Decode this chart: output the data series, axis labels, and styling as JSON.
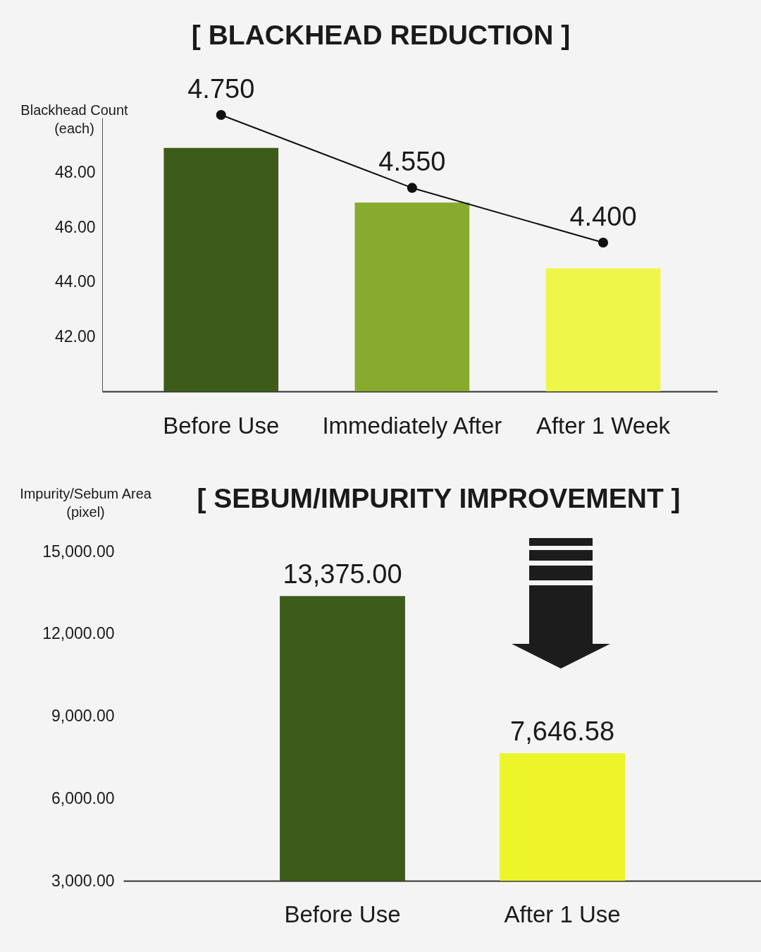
{
  "chart_data": [
    {
      "type": "bar",
      "title": "[ BLACKHEAD REDUCTION ]",
      "ylabel": "Blackhead Count\n(each)",
      "categories": [
        "Before Use",
        "Immediately After",
        "After 1 Week"
      ],
      "series": [
        {
          "colors": [
            "#3d5c1a",
            "#86ab2e",
            "#eef64a"
          ],
          "values": [
            48.9,
            46.9,
            44.5
          ]
        },
        {
          "type": "line",
          "axis": "y2",
          "color": "#111111",
          "values": [
            4.75,
            4.55,
            4.4
          ],
          "value_labels": [
            "4.750",
            "4.550",
            "4.400"
          ]
        }
      ],
      "ylim": [
        40,
        50
      ],
      "yticks": [
        {
          "value": 42,
          "label": "42.00"
        },
        {
          "value": 44,
          "label": "44.00"
        },
        {
          "value": 46,
          "label": "46.00"
        },
        {
          "value": 48,
          "label": "48.00"
        }
      ],
      "marker": "circle"
    },
    {
      "type": "bar",
      "title": "[ SEBUM/IMPURITY IMPROVEMENT ]",
      "ylabel": "Impurity/Sebum Area\n(pixel)",
      "categories": [
        "Before Use",
        "After 1 Use"
      ],
      "series": [
        {
          "colors": [
            "#3d5c1a",
            "#ebf52a"
          ],
          "values": [
            13375,
            7646.58
          ],
          "value_labels": [
            "13,375.00",
            "7,646.58"
          ]
        }
      ],
      "ylim": [
        3000,
        15000
      ],
      "yticks": [
        {
          "value": 3000,
          "label": "3,000.00"
        },
        {
          "value": 6000,
          "label": "6,000.00"
        },
        {
          "value": 9000,
          "label": "9,000.00"
        },
        {
          "value": 12000,
          "label": "12,000.00"
        },
        {
          "value": 15000,
          "label": "15,000.00"
        }
      ]
    }
  ]
}
